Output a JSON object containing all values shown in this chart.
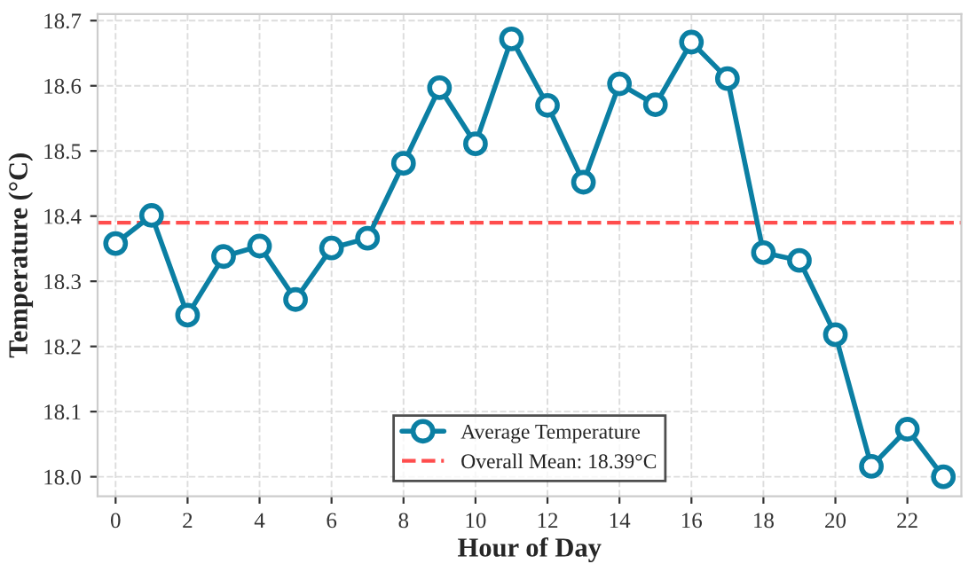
{
  "chart_data": {
    "type": "line",
    "xlabel": "Hour of Day",
    "ylabel": "Temperature (°C)",
    "x": [
      0,
      1,
      2,
      3,
      4,
      5,
      6,
      7,
      8,
      9,
      10,
      11,
      12,
      13,
      14,
      15,
      16,
      17,
      18,
      19,
      20,
      21,
      22,
      23
    ],
    "series": [
      {
        "name": "Average Temperature",
        "color": "#0b7fa3",
        "values": [
          18.358,
          18.401,
          18.248,
          18.338,
          18.354,
          18.272,
          18.351,
          18.366,
          18.481,
          18.597,
          18.511,
          18.672,
          18.57,
          18.452,
          18.603,
          18.571,
          18.667,
          18.611,
          18.344,
          18.332,
          18.218,
          18.016,
          18.073,
          18.0
        ]
      }
    ],
    "ref_lines": [
      {
        "axis": "y",
        "value": 18.39,
        "label": "Overall Mean: 18.39°C",
        "color": "#ff4d4d",
        "line_style": "dashed"
      }
    ],
    "xlim": [
      -0.5,
      23.5
    ],
    "ylim": [
      17.97,
      18.71
    ],
    "xticks": [
      0,
      2,
      4,
      6,
      8,
      10,
      12,
      14,
      16,
      18,
      20,
      22
    ],
    "yticks": [
      {
        "value": 18.0,
        "label": "18.0"
      },
      {
        "value": 18.1,
        "label": "18.1"
      },
      {
        "value": 18.2,
        "label": "18.2"
      },
      {
        "value": 18.3,
        "label": "18.3"
      },
      {
        "value": 18.4,
        "label": "18.4"
      },
      {
        "value": 18.5,
        "label": "18.5"
      },
      {
        "value": 18.6,
        "label": "18.6"
      },
      {
        "value": 18.7,
        "label": "18.7"
      }
    ],
    "grid": true,
    "legend": "bottom",
    "marker": "circle",
    "line_style": "solid"
  }
}
